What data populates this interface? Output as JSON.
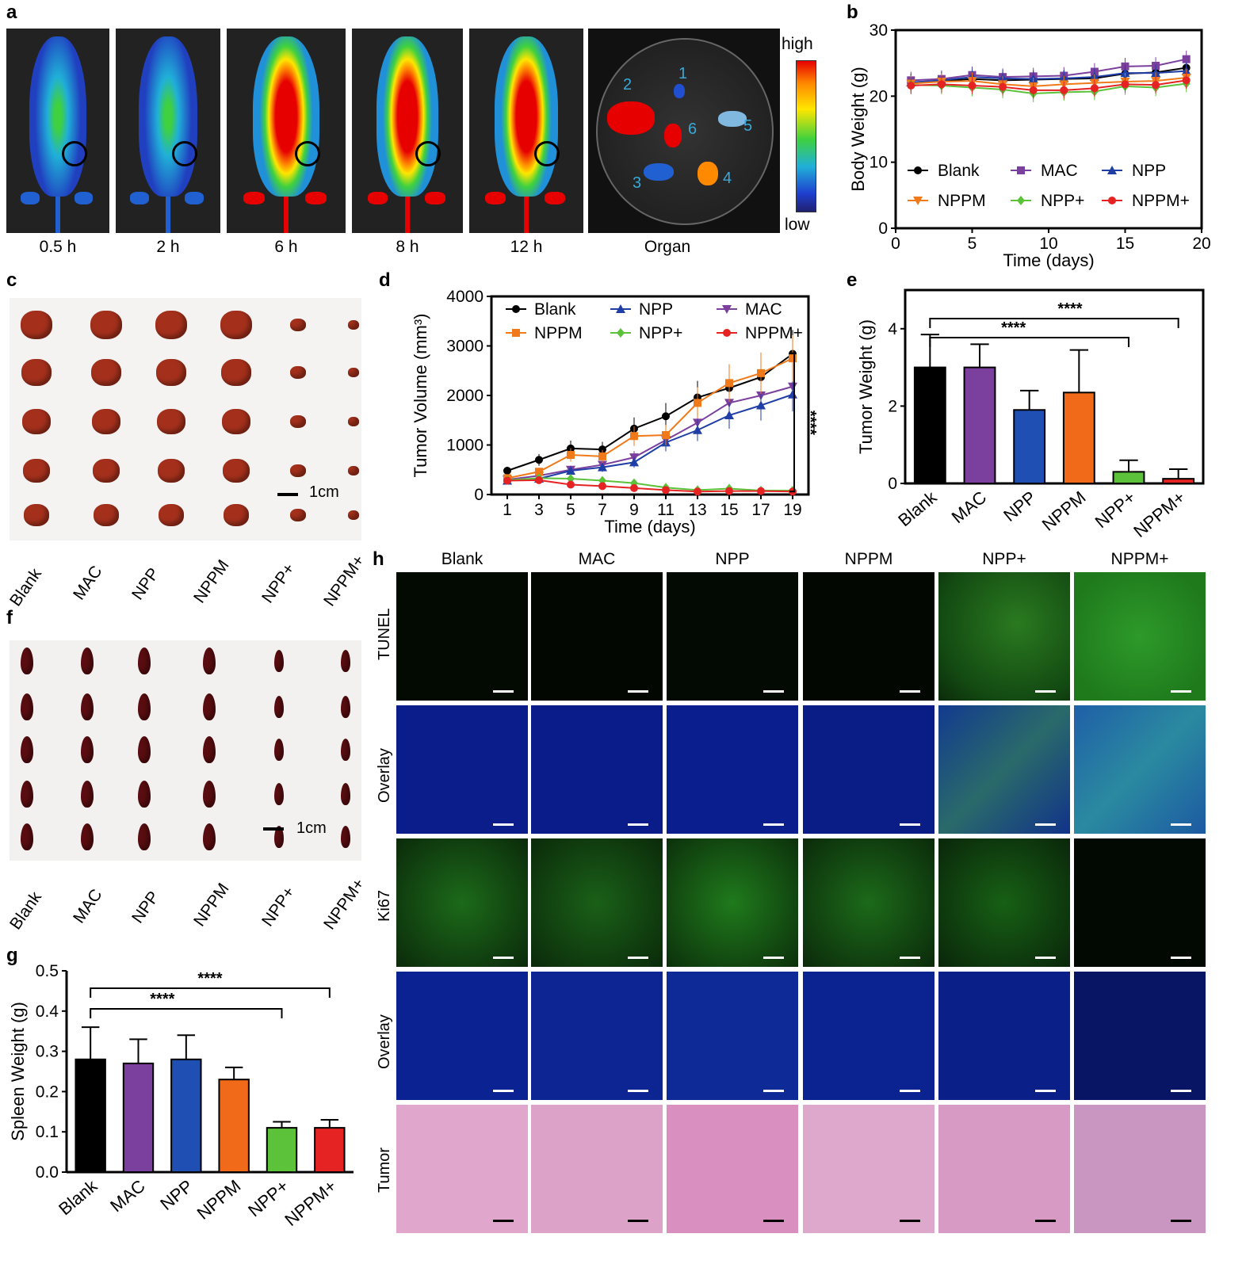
{
  "panels": {
    "a": {
      "label": "a",
      "timepoints": [
        "0.5 h",
        "2 h",
        "6 h",
        "8 h",
        "12 h",
        "Organ"
      ],
      "colorbar_high": "high",
      "colorbar_low": "low",
      "organ_numbers": [
        "1",
        "2",
        "3",
        "4",
        "5",
        "6"
      ],
      "intensity_level": [
        0.35,
        0.45,
        0.9,
        0.9,
        0.85
      ]
    },
    "b": {
      "label": "b",
      "chart_data": {
        "type": "line",
        "xlabel": "Time (days)",
        "ylabel": "Body Weight (g)",
        "xlim": [
          0,
          20
        ],
        "ylim": [
          0,
          30
        ],
        "xticks": [
          "0",
          "5",
          "10",
          "15",
          "20"
        ],
        "yticks": [
          "0",
          "10",
          "20",
          "30"
        ],
        "x": [
          1,
          3,
          5,
          7,
          9,
          11,
          13,
          15,
          17,
          19
        ],
        "series": [
          {
            "name": "Blank",
            "color": "#000000",
            "marker": "circle",
            "values": [
              22.0,
              22.3,
              22.6,
              22.4,
              22.5,
              22.6,
              22.7,
              23.4,
              23.6,
              24.3
            ]
          },
          {
            "name": "MAC",
            "color": "#7b3f9e",
            "marker": "square",
            "values": [
              22.4,
              22.6,
              23.2,
              22.9,
              23.0,
              23.1,
              23.7,
              24.5,
              24.6,
              25.6
            ]
          },
          {
            "name": "NPP",
            "color": "#1f3fa6",
            "marker": "triangle",
            "values": [
              22.1,
              22.4,
              22.9,
              22.7,
              22.6,
              22.7,
              22.9,
              23.5,
              23.5,
              23.8
            ]
          },
          {
            "name": "NPPM",
            "color": "#f07a1a",
            "marker": "triangle-down",
            "values": [
              21.9,
              22.2,
              22.3,
              21.8,
              21.5,
              21.8,
              22.0,
              22.2,
              22.3,
              22.8
            ]
          },
          {
            "name": "NPP+",
            "color": "#5cc23a",
            "marker": "diamond",
            "values": [
              21.7,
              21.6,
              21.3,
              21.0,
              20.4,
              20.6,
              20.7,
              21.5,
              21.3,
              21.9
            ]
          },
          {
            "name": "NPPM+",
            "color": "#e52323",
            "marker": "circle",
            "values": [
              21.6,
              21.8,
              21.6,
              21.4,
              20.9,
              20.9,
              21.2,
              21.8,
              21.7,
              22.4
            ]
          }
        ]
      }
    },
    "c": {
      "label": "c",
      "groups": [
        "Blank",
        "MAC",
        "NPP",
        "NPPM",
        "NPP+",
        "NPPM+"
      ],
      "scale": "1cm"
    },
    "d": {
      "label": "d",
      "significance": "****",
      "chart_data": {
        "type": "line",
        "xlabel": "Time (days)",
        "ylabel": "Tumor Volume (mm³)",
        "xlim": [
          0,
          20
        ],
        "ylim": [
          0,
          4000
        ],
        "xticks": [
          "1",
          "3",
          "5",
          "7",
          "9",
          "11",
          "13",
          "15",
          "17",
          "19"
        ],
        "yticks": [
          "0",
          "1000",
          "2000",
          "3000",
          "4000"
        ],
        "x": [
          1,
          3,
          5,
          7,
          9,
          11,
          13,
          15,
          17,
          19
        ],
        "series": [
          {
            "name": "Blank",
            "color": "#000000",
            "marker": "circle",
            "values": [
              480,
              700,
              930,
              910,
              1330,
              1580,
              1960,
              2150,
              2370,
              2840
            ]
          },
          {
            "name": "MAC",
            "color": "#7b3f9e",
            "marker": "triangle-down",
            "values": [
              300,
              380,
              500,
              600,
              750,
              1100,
              1450,
              1850,
              2000,
              2180
            ]
          },
          {
            "name": "NPP",
            "color": "#1f3fa6",
            "marker": "triangle",
            "values": [
              280,
              320,
              480,
              550,
              650,
              1050,
              1300,
              1600,
              1800,
              2020
            ]
          },
          {
            "name": "NPPM",
            "color": "#f07a1a",
            "marker": "square",
            "values": [
              330,
              460,
              800,
              770,
              1180,
              1200,
              1850,
              2250,
              2450,
              2750
            ]
          },
          {
            "name": "NPP+",
            "color": "#5cc23a",
            "marker": "diamond",
            "values": [
              290,
              330,
              320,
              280,
              230,
              140,
              90,
              120,
              80,
              80
            ]
          },
          {
            "name": "NPPM+",
            "color": "#e52323",
            "marker": "circle",
            "values": [
              280,
              290,
              200,
              170,
              130,
              90,
              60,
              70,
              70,
              60
            ]
          }
        ]
      }
    },
    "e": {
      "label": "e",
      "significance": [
        "****",
        "****"
      ],
      "chart_data": {
        "type": "bar",
        "ylabel": "Tumor Weight (g)",
        "ylim": [
          0,
          5
        ],
        "yticks": [
          "0",
          "2",
          "4"
        ],
        "categories": [
          "Blank",
          "MAC",
          "NPP",
          "NPPM",
          "NPP+",
          "NPPM+"
        ],
        "values": [
          3.0,
          3.0,
          1.9,
          2.35,
          0.3,
          0.12
        ],
        "errors": [
          0.85,
          0.6,
          0.5,
          1.1,
          0.3,
          0.25
        ],
        "colors": [
          "#000000",
          "#7b3f9e",
          "#1f4fb3",
          "#f06a1a",
          "#5cc23a",
          "#e52323"
        ]
      }
    },
    "f": {
      "label": "f",
      "groups": [
        "Blank",
        "MAC",
        "NPP",
        "NPPM",
        "NPP+",
        "NPPM+"
      ],
      "scale": "1cm"
    },
    "g": {
      "label": "g",
      "significance": [
        "****",
        "****"
      ],
      "chart_data": {
        "type": "bar",
        "ylabel": "Spleen Weight (g)",
        "ylim": [
          0,
          0.5
        ],
        "yticks": [
          "0.0",
          "0.1",
          "0.2",
          "0.3",
          "0.4",
          "0.5"
        ],
        "categories": [
          "Blank",
          "MAC",
          "NPP",
          "NPPM",
          "NPP+",
          "NPPM+"
        ],
        "values": [
          0.28,
          0.27,
          0.28,
          0.23,
          0.11,
          0.11
        ],
        "errors": [
          0.08,
          0.06,
          0.06,
          0.03,
          0.015,
          0.02
        ],
        "colors": [
          "#000000",
          "#7b3f9e",
          "#1f4fb3",
          "#f06a1a",
          "#5cc23a",
          "#e52323"
        ]
      }
    },
    "h": {
      "label": "h",
      "columns": [
        "Blank",
        "MAC",
        "NPP",
        "NPPM",
        "NPP+",
        "NPPM+"
      ],
      "rows": [
        "TUNEL",
        "Overlay",
        "Ki67",
        "Overlay",
        "Tumor"
      ]
    }
  }
}
